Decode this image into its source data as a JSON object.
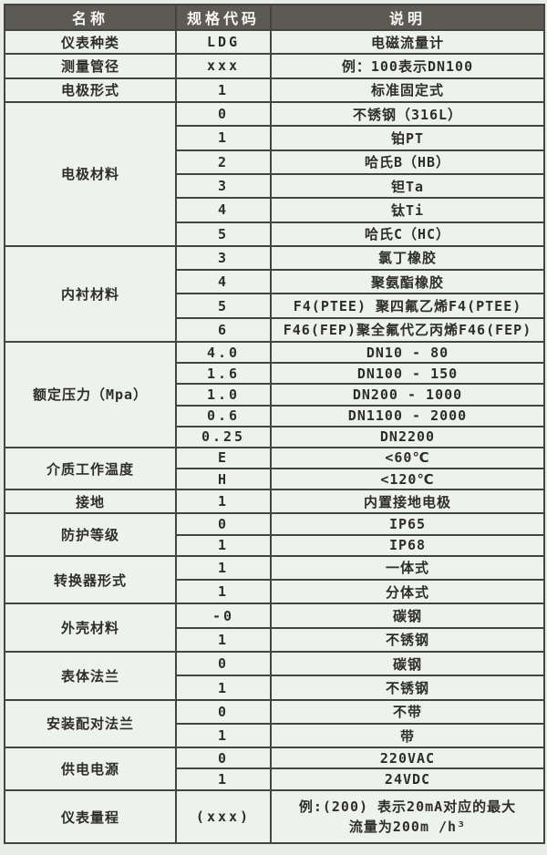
{
  "colors": {
    "page_background": "#e8ece8",
    "header_background": "#5c5a55",
    "header_text": "#f7f6f3",
    "cell_background": "#eef2ee",
    "border": "#45443f",
    "text": "#2e2d2b"
  },
  "table": {
    "headers": [
      "名称",
      "规格代码",
      "说明"
    ],
    "sections": [
      {
        "name": "仪表种类",
        "rows": [
          {
            "code": "LDG",
            "desc": "电磁流量计"
          }
        ]
      },
      {
        "name": "测量管径",
        "rows": [
          {
            "code": "xxx",
            "desc": "例：100表示DN100"
          }
        ]
      },
      {
        "name": "电极形式",
        "rows": [
          {
            "code": "1",
            "desc": "标准固定式"
          }
        ]
      },
      {
        "name": "电极材料",
        "rows": [
          {
            "code": "0",
            "desc": "不锈钢（316L）"
          },
          {
            "code": "1",
            "desc": "铂PT"
          },
          {
            "code": "2",
            "desc": "哈氏B（HB）"
          },
          {
            "code": "3",
            "desc": "钽Ta"
          },
          {
            "code": "4",
            "desc": "钛Ti"
          },
          {
            "code": "5",
            "desc": "哈氏C（HC）"
          }
        ]
      },
      {
        "name": "内衬材料",
        "rows": [
          {
            "code": "3",
            "desc": "氯丁橡胶"
          },
          {
            "code": "4",
            "desc": "聚氨酯橡胶"
          },
          {
            "code": "5",
            "desc": "F4(PTEE) 聚四氟乙烯F4(PTEE)"
          },
          {
            "code": "6",
            "desc": "F46(FEP)聚全氟代乙丙烯F46(FEP)"
          }
        ]
      },
      {
        "name": "额定压力（Mpa）",
        "rows": [
          {
            "code": "4.0",
            "desc": "DN10 - 80"
          },
          {
            "code": "1.6",
            "desc": "DN100 - 150"
          },
          {
            "code": "1.0",
            "desc": "DN200 - 1000"
          },
          {
            "code": "0.6",
            "desc": "DN1100 - 2000"
          },
          {
            "code": "0.25",
            "desc": "DN2200"
          }
        ]
      },
      {
        "name": "介质工作温度",
        "rows": [
          {
            "code": "E",
            "desc": "<60℃"
          },
          {
            "code": "H",
            "desc": "<120℃"
          }
        ]
      },
      {
        "name": "接地",
        "rows": [
          {
            "code": "1",
            "desc": "内置接地电极"
          }
        ]
      },
      {
        "name": "防护等级",
        "rows": [
          {
            "code": "0",
            "desc": "IP65"
          },
          {
            "code": "1",
            "desc": "IP68"
          }
        ]
      },
      {
        "name": "转换器形式",
        "rows": [
          {
            "code": "1",
            "desc": "一体式"
          },
          {
            "code": "1",
            "desc": "分体式"
          }
        ]
      },
      {
        "name": "外壳材料",
        "rows": [
          {
            "code": "-0",
            "desc": "碳钢"
          },
          {
            "code": "1",
            "desc": "不锈钢"
          }
        ]
      },
      {
        "name": "表体法兰",
        "rows": [
          {
            "code": "0",
            "desc": "碳钢"
          },
          {
            "code": "1",
            "desc": "不锈钢"
          }
        ]
      },
      {
        "name": "安装配对法兰",
        "rows": [
          {
            "code": "0",
            "desc": "不带"
          },
          {
            "code": "1",
            "desc": "带"
          }
        ]
      },
      {
        "name": "供电电源",
        "rows": [
          {
            "code": "0",
            "desc": "220VAC"
          },
          {
            "code": "1",
            "desc": "24VDC"
          }
        ]
      },
      {
        "name": "仪表量程",
        "rows": [
          {
            "code": "(xxx)",
            "desc": "例:(200) 表示20mA对应的最大\n流量为200m /h³",
            "tall": true
          }
        ]
      }
    ]
  }
}
